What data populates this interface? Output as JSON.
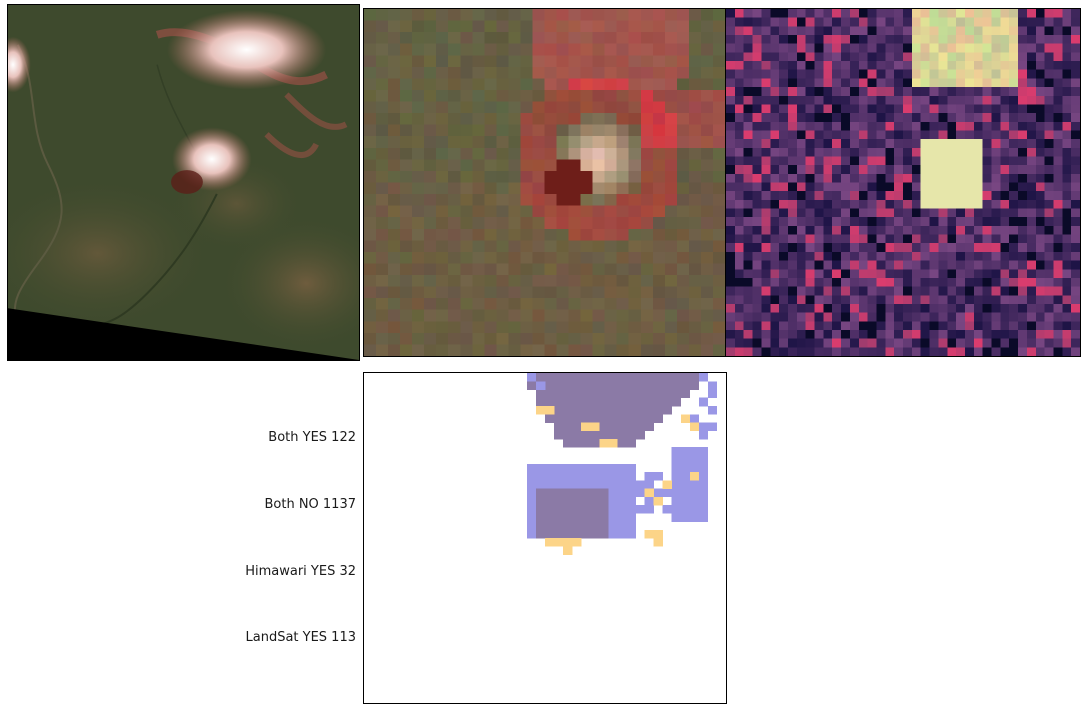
{
  "legend": {
    "both_yes": "Both YES 122",
    "both_no": "Both NO 1137",
    "himawari_yes": "Himawari YES 32",
    "landsat_yes": "LandSat YES 113"
  },
  "colors": {
    "both_yes": "#8b7aa6",
    "himawari_yes": "#fcd488",
    "landsat_yes": "#9a97e6",
    "both_no": "#ffffff",
    "terrain": "#3d4a2c",
    "smoke": "#c98a80"
  }
}
